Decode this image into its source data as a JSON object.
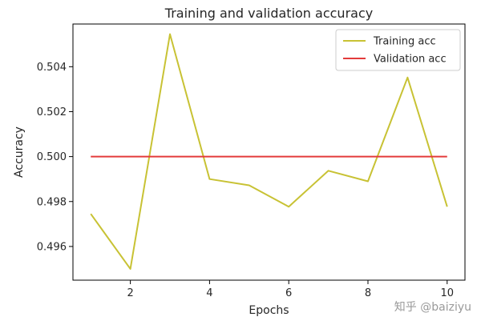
{
  "chart_data": {
    "type": "line",
    "title": "Training and validation accuracy",
    "xlabel": "Epochs",
    "ylabel": "Accuracy",
    "x": [
      1,
      2,
      3,
      4,
      5,
      6,
      7,
      8,
      9,
      10
    ],
    "series": [
      {
        "name": "Training acc",
        "color": "#c8c234",
        "values": [
          0.49745,
          0.495,
          0.50545,
          0.499,
          0.49872,
          0.49777,
          0.49937,
          0.4989,
          0.50352,
          0.49777
        ]
      },
      {
        "name": "Validation acc",
        "color": "#e33b3b",
        "values": [
          0.5,
          0.5,
          0.5,
          0.5,
          0.5,
          0.5,
          0.5,
          0.5,
          0.5,
          0.5
        ]
      }
    ],
    "xlim": [
      0.55,
      10.45
    ],
    "ylim": [
      0.4945,
      0.5059
    ],
    "xticks": [
      2,
      4,
      6,
      8,
      10
    ],
    "xtick_labels": [
      "2",
      "4",
      "6",
      "8",
      "10"
    ],
    "yticks": [
      0.496,
      0.498,
      0.5,
      0.502,
      0.504
    ],
    "ytick_labels": [
      "0.496",
      "0.498",
      "0.500",
      "0.502",
      "0.504"
    ],
    "grid": false,
    "legend_position": "top-right"
  },
  "watermark": "知乎 @baiziyu"
}
